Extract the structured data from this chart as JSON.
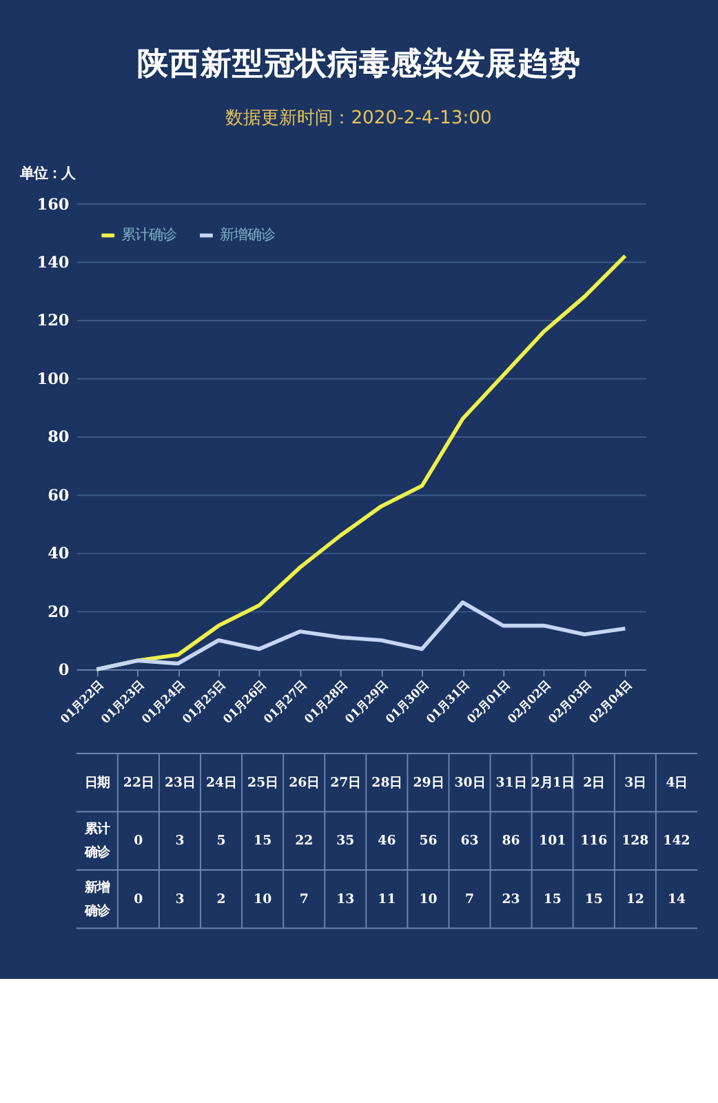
{
  "chart_data": [
    {
      "type": "line",
      "title": "陕西新型冠状病毒感染发展趋势",
      "subtitle": "数据更新时间：2020-2-4-13:00",
      "ylabel": "单位：人",
      "categories": [
        "01月22日",
        "01月23日",
        "01月24日",
        "01月25日",
        "01月26日",
        "01月27日",
        "01月28日",
        "01月29日",
        "01月30日",
        "01月31日",
        "02月01日",
        "02月02日",
        "02月03日",
        "02月04日"
      ],
      "series": [
        {
          "name": "累计确诊",
          "color": "#eef04a",
          "values": [
            0,
            3,
            5,
            15,
            22,
            35,
            46,
            56,
            63,
            86,
            101,
            116,
            128,
            142
          ]
        },
        {
          "name": "新增确诊",
          "color": "#c5d6f5",
          "values": [
            0,
            3,
            2,
            10,
            7,
            13,
            11,
            10,
            7,
            23,
            15,
            15,
            12,
            14
          ]
        }
      ],
      "ylim": [
        0,
        160
      ],
      "yticks": [
        0,
        20,
        40,
        60,
        80,
        100,
        120,
        140,
        160
      ],
      "grid": "y",
      "legend": "top left",
      "marker": "none",
      "line_style": "solid"
    },
    {
      "type": "heatmap",
      "xlabel": "日期",
      "data_labels": true,
      "categories": [
        "22日",
        "23日",
        "24日",
        "25日",
        "26日",
        "27日",
        "28日",
        "29日",
        "30日",
        "31日",
        "2月1日",
        "2日",
        "3日",
        "4日"
      ],
      "y_categories": [
        "累计确诊",
        "新增确诊"
      ],
      "cells": [
        [
          0,
          3,
          5,
          15,
          22,
          35,
          46,
          56,
          63,
          86,
          101,
          116,
          128,
          142
        ],
        [
          0,
          3,
          2,
          10,
          7,
          13,
          11,
          10,
          7,
          23,
          15,
          15,
          12,
          14
        ]
      ]
    }
  ]
}
